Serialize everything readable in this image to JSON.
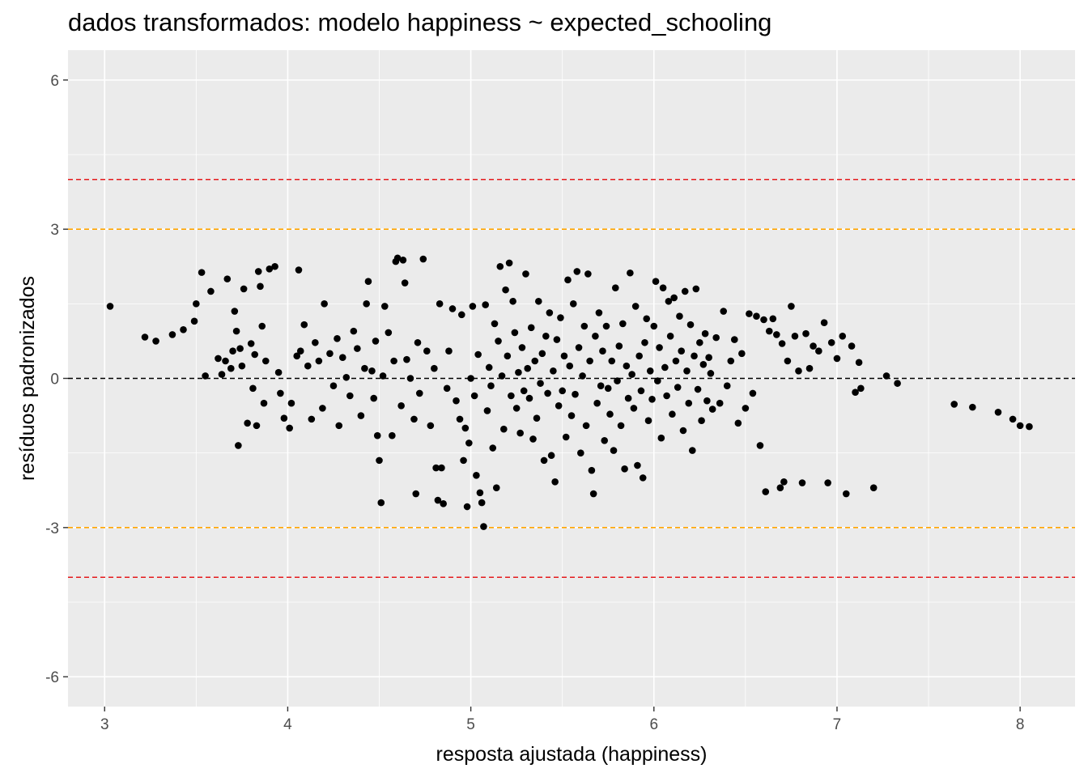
{
  "chart_data": {
    "type": "scatter",
    "title": "dados transformados: modelo happiness ~ expected_schooling",
    "xlabel": "resposta ajustada (happiness)",
    "ylabel": "resíduos padronizados",
    "xlim": [
      2.8,
      8.3
    ],
    "ylim": [
      -6.6,
      6.6
    ],
    "x_ticks": [
      3,
      4,
      5,
      6,
      7,
      8
    ],
    "x_tick_labels": [
      "3",
      "4",
      "5",
      "6",
      "7",
      "8"
    ],
    "y_ticks": [
      -6,
      -3,
      0,
      3,
      6
    ],
    "y_tick_labels": [
      "-6",
      "-3",
      "0",
      "3",
      "6"
    ],
    "grid": true,
    "panel_background": "#ebebeb",
    "grid_color": "#ffffff",
    "point_color": "#000000",
    "reference_lines": [
      {
        "y": 4,
        "color": "#e41a1c",
        "style": "dashed"
      },
      {
        "y": 3,
        "color": "#ffa500",
        "style": "dashed"
      },
      {
        "y": 0,
        "color": "#000000",
        "style": "dashed"
      },
      {
        "y": -3,
        "color": "#ffa500",
        "style": "dashed"
      },
      {
        "y": -4,
        "color": "#e41a1c",
        "style": "dashed"
      }
    ],
    "series": [
      {
        "points": [
          [
            3.03,
            1.45
          ],
          [
            3.22,
            0.83
          ],
          [
            3.28,
            0.75
          ],
          [
            3.37,
            0.88
          ],
          [
            3.43,
            0.98
          ],
          [
            3.49,
            1.15
          ],
          [
            3.5,
            1.5
          ],
          [
            3.53,
            2.13
          ],
          [
            3.55,
            0.05
          ],
          [
            3.58,
            1.75
          ],
          [
            3.62,
            0.4
          ],
          [
            3.64,
            0.08
          ],
          [
            3.66,
            0.35
          ],
          [
            3.67,
            2.0
          ],
          [
            3.69,
            0.2
          ],
          [
            3.7,
            0.55
          ],
          [
            3.71,
            1.35
          ],
          [
            3.72,
            0.95
          ],
          [
            3.73,
            -1.35
          ],
          [
            3.74,
            0.6
          ],
          [
            3.75,
            0.25
          ],
          [
            3.76,
            1.8
          ],
          [
            3.78,
            -0.9
          ],
          [
            3.8,
            0.7
          ],
          [
            3.81,
            -0.2
          ],
          [
            3.82,
            0.48
          ],
          [
            3.83,
            -0.95
          ],
          [
            3.84,
            2.15
          ],
          [
            3.85,
            1.85
          ],
          [
            3.86,
            1.05
          ],
          [
            3.87,
            -0.5
          ],
          [
            3.88,
            0.35
          ],
          [
            3.9,
            2.2
          ],
          [
            3.93,
            2.25
          ],
          [
            3.95,
            0.12
          ],
          [
            3.96,
            -0.3
          ],
          [
            3.98,
            -0.8
          ],
          [
            4.01,
            -1.0
          ],
          [
            4.02,
            -0.5
          ],
          [
            4.05,
            0.45
          ],
          [
            4.06,
            2.18
          ],
          [
            4.07,
            0.55
          ],
          [
            4.09,
            1.08
          ],
          [
            4.11,
            0.25
          ],
          [
            4.13,
            -0.82
          ],
          [
            4.15,
            0.72
          ],
          [
            4.17,
            0.35
          ],
          [
            4.19,
            -0.6
          ],
          [
            4.2,
            1.5
          ],
          [
            4.23,
            0.5
          ],
          [
            4.25,
            -0.15
          ],
          [
            4.27,
            0.8
          ],
          [
            4.28,
            -0.95
          ],
          [
            4.3,
            0.42
          ],
          [
            4.32,
            0.02
          ],
          [
            4.34,
            -0.35
          ],
          [
            4.36,
            0.95
          ],
          [
            4.38,
            0.6
          ],
          [
            4.4,
            -0.75
          ],
          [
            4.42,
            0.2
          ],
          [
            4.43,
            1.5
          ],
          [
            4.44,
            1.95
          ],
          [
            4.46,
            0.15
          ],
          [
            4.47,
            -0.4
          ],
          [
            4.48,
            0.75
          ],
          [
            4.49,
            -1.15
          ],
          [
            4.5,
            -1.65
          ],
          [
            4.51,
            -2.5
          ],
          [
            4.52,
            0.05
          ],
          [
            4.53,
            1.45
          ],
          [
            4.55,
            0.92
          ],
          [
            4.57,
            -1.15
          ],
          [
            4.58,
            0.35
          ],
          [
            4.59,
            2.35
          ],
          [
            4.6,
            2.42
          ],
          [
            4.62,
            -0.55
          ],
          [
            4.63,
            2.38
          ],
          [
            4.64,
            1.92
          ],
          [
            4.65,
            0.38
          ],
          [
            4.67,
            0.0
          ],
          [
            4.69,
            -0.82
          ],
          [
            4.7,
            -2.32
          ],
          [
            4.71,
            0.72
          ],
          [
            4.72,
            -0.3
          ],
          [
            4.74,
            2.4
          ],
          [
            4.76,
            0.55
          ],
          [
            4.78,
            -0.95
          ],
          [
            4.8,
            0.2
          ],
          [
            4.81,
            -1.8
          ],
          [
            4.82,
            -2.45
          ],
          [
            4.83,
            1.5
          ],
          [
            4.84,
            -1.8
          ],
          [
            4.85,
            -2.52
          ],
          [
            4.87,
            -0.2
          ],
          [
            4.88,
            0.55
          ],
          [
            4.9,
            1.4
          ],
          [
            4.92,
            -0.45
          ],
          [
            4.94,
            -0.82
          ],
          [
            4.95,
            1.28
          ],
          [
            4.96,
            -1.65
          ],
          [
            4.97,
            -1.0
          ],
          [
            4.98,
            -2.58
          ],
          [
            4.99,
            -1.3
          ],
          [
            5.0,
            0.0
          ],
          [
            5.01,
            1.45
          ],
          [
            5.02,
            -0.35
          ],
          [
            5.03,
            -1.95
          ],
          [
            5.04,
            0.48
          ],
          [
            5.05,
            -2.3
          ],
          [
            5.06,
            -2.5
          ],
          [
            5.07,
            -2.98
          ],
          [
            5.08,
            1.48
          ],
          [
            5.09,
            -0.65
          ],
          [
            5.1,
            0.22
          ],
          [
            5.11,
            -0.15
          ],
          [
            5.12,
            -1.4
          ],
          [
            5.13,
            1.1
          ],
          [
            5.14,
            -2.2
          ],
          [
            5.15,
            0.75
          ],
          [
            5.16,
            2.25
          ],
          [
            5.17,
            0.05
          ],
          [
            5.18,
            -1.02
          ],
          [
            5.19,
            1.78
          ],
          [
            5.2,
            0.45
          ],
          [
            5.21,
            2.32
          ],
          [
            5.22,
            -0.35
          ],
          [
            5.23,
            1.55
          ],
          [
            5.24,
            0.92
          ],
          [
            5.25,
            -0.6
          ],
          [
            5.26,
            0.12
          ],
          [
            5.27,
            -1.1
          ],
          [
            5.28,
            0.62
          ],
          [
            5.29,
            -0.25
          ],
          [
            5.3,
            2.1
          ],
          [
            5.31,
            0.2
          ],
          [
            5.32,
            -0.4
          ],
          [
            5.33,
            1.02
          ],
          [
            5.34,
            -1.22
          ],
          [
            5.35,
            0.35
          ],
          [
            5.36,
            -0.8
          ],
          [
            5.37,
            1.55
          ],
          [
            5.38,
            -0.1
          ],
          [
            5.39,
            0.5
          ],
          [
            5.4,
            -1.65
          ],
          [
            5.41,
            0.85
          ],
          [
            5.42,
            -0.3
          ],
          [
            5.43,
            1.32
          ],
          [
            5.44,
            -1.55
          ],
          [
            5.45,
            0.15
          ],
          [
            5.46,
            -2.08
          ],
          [
            5.47,
            0.78
          ],
          [
            5.48,
            -0.55
          ],
          [
            5.49,
            1.22
          ],
          [
            5.5,
            -0.25
          ],
          [
            5.51,
            0.45
          ],
          [
            5.52,
            -1.18
          ],
          [
            5.53,
            1.98
          ],
          [
            5.54,
            0.25
          ],
          [
            5.55,
            -0.75
          ],
          [
            5.56,
            1.5
          ],
          [
            5.57,
            -0.32
          ],
          [
            5.58,
            2.15
          ],
          [
            5.59,
            0.62
          ],
          [
            5.6,
            -1.5
          ],
          [
            5.61,
            0.05
          ],
          [
            5.62,
            1.05
          ],
          [
            5.63,
            -0.95
          ],
          [
            5.64,
            2.1
          ],
          [
            5.65,
            0.35
          ],
          [
            5.66,
            -1.85
          ],
          [
            5.67,
            -2.32
          ],
          [
            5.68,
            0.85
          ],
          [
            5.69,
            -0.5
          ],
          [
            5.7,
            1.32
          ],
          [
            5.71,
            -0.15
          ],
          [
            5.72,
            0.55
          ],
          [
            5.73,
            -1.25
          ],
          [
            5.74,
            1.05
          ],
          [
            5.75,
            -0.2
          ],
          [
            5.76,
            -0.72
          ],
          [
            5.77,
            0.35
          ],
          [
            5.78,
            -1.45
          ],
          [
            5.79,
            1.82
          ],
          [
            5.8,
            -0.05
          ],
          [
            5.81,
            0.65
          ],
          [
            5.82,
            -0.95
          ],
          [
            5.83,
            1.1
          ],
          [
            5.84,
            -1.82
          ],
          [
            5.85,
            0.25
          ],
          [
            5.86,
            -0.4
          ],
          [
            5.87,
            2.12
          ],
          [
            5.88,
            0.08
          ],
          [
            5.89,
            -0.6
          ],
          [
            5.9,
            1.45
          ],
          [
            5.91,
            -1.75
          ],
          [
            5.92,
            0.45
          ],
          [
            5.93,
            -0.25
          ],
          [
            5.94,
            -2.0
          ],
          [
            5.95,
            0.72
          ],
          [
            5.96,
            1.2
          ],
          [
            5.97,
            -0.85
          ],
          [
            5.98,
            0.15
          ],
          [
            5.99,
            -0.42
          ],
          [
            6.0,
            1.05
          ],
          [
            6.01,
            1.95
          ],
          [
            6.02,
            -0.05
          ],
          [
            6.03,
            0.62
          ],
          [
            6.04,
            -1.2
          ],
          [
            6.05,
            1.82
          ],
          [
            6.06,
            0.22
          ],
          [
            6.07,
            -0.35
          ],
          [
            6.08,
            1.55
          ],
          [
            6.09,
            0.85
          ],
          [
            6.1,
            -0.72
          ],
          [
            6.11,
            1.62
          ],
          [
            6.12,
            0.35
          ],
          [
            6.13,
            -0.18
          ],
          [
            6.14,
            1.25
          ],
          [
            6.15,
            0.55
          ],
          [
            6.16,
            -1.05
          ],
          [
            6.17,
            1.75
          ],
          [
            6.18,
            0.15
          ],
          [
            6.19,
            -0.5
          ],
          [
            6.2,
            1.08
          ],
          [
            6.21,
            -1.45
          ],
          [
            6.22,
            0.45
          ],
          [
            6.23,
            1.8
          ],
          [
            6.24,
            -0.22
          ],
          [
            6.25,
            0.72
          ],
          [
            6.26,
            -0.85
          ],
          [
            6.27,
            0.28
          ],
          [
            6.28,
            0.9
          ],
          [
            6.29,
            -0.45
          ],
          [
            6.3,
            0.42
          ],
          [
            6.31,
            0.1
          ],
          [
            6.32,
            -0.62
          ],
          [
            6.34,
            0.82
          ],
          [
            6.36,
            -0.5
          ],
          [
            6.38,
            1.35
          ],
          [
            6.4,
            -0.15
          ],
          [
            6.42,
            0.35
          ],
          [
            6.44,
            0.78
          ],
          [
            6.46,
            -0.9
          ],
          [
            6.48,
            0.5
          ],
          [
            6.5,
            -0.6
          ],
          [
            6.52,
            1.3
          ],
          [
            6.54,
            -0.3
          ],
          [
            6.56,
            1.25
          ],
          [
            6.58,
            -1.35
          ],
          [
            6.6,
            1.18
          ],
          [
            6.61,
            -2.28
          ],
          [
            6.63,
            0.95
          ],
          [
            6.65,
            1.2
          ],
          [
            6.67,
            0.88
          ],
          [
            6.69,
            -2.2
          ],
          [
            6.7,
            0.7
          ],
          [
            6.71,
            -2.08
          ],
          [
            6.73,
            0.35
          ],
          [
            6.75,
            1.45
          ],
          [
            6.77,
            0.85
          ],
          [
            6.79,
            0.15
          ],
          [
            6.81,
            -2.1
          ],
          [
            6.83,
            0.9
          ],
          [
            6.85,
            0.2
          ],
          [
            6.87,
            0.65
          ],
          [
            6.9,
            0.55
          ],
          [
            6.93,
            1.12
          ],
          [
            6.95,
            -2.1
          ],
          [
            6.97,
            0.72
          ],
          [
            7.0,
            0.4
          ],
          [
            7.03,
            0.85
          ],
          [
            7.05,
            -2.32
          ],
          [
            7.08,
            0.65
          ],
          [
            7.1,
            -0.28
          ],
          [
            7.12,
            0.32
          ],
          [
            7.13,
            -0.2
          ],
          [
            7.2,
            -2.2
          ],
          [
            7.27,
            0.05
          ],
          [
            7.33,
            -0.1
          ],
          [
            7.64,
            -0.52
          ],
          [
            7.74,
            -0.58
          ],
          [
            7.88,
            -0.68
          ],
          [
            7.96,
            -0.82
          ],
          [
            8.0,
            -0.95
          ],
          [
            8.05,
            -0.97
          ]
        ]
      }
    ]
  }
}
